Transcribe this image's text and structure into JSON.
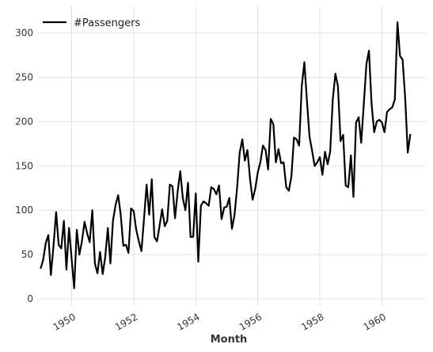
{
  "chart_data": {
    "type": "line",
    "title": "",
    "xlabel": "Month",
    "ylabel": "",
    "legend": {
      "position": "top-left",
      "entries": [
        "#Passengers"
      ]
    },
    "grid": true,
    "x_range": [
      "1948-12",
      "1961-06"
    ],
    "ylim": [
      -8,
      330
    ],
    "x_ticks": [
      "1950",
      "1952",
      "1954",
      "1956",
      "1958",
      "1960"
    ],
    "y_ticks": [
      0,
      50,
      100,
      150,
      200,
      250,
      300
    ],
    "series": [
      {
        "name": "#Passengers",
        "color": "#000000",
        "points": [
          [
            "1949-01",
            34
          ],
          [
            "1949-02",
            44
          ],
          [
            "1949-03",
            63
          ],
          [
            "1949-04",
            72
          ],
          [
            "1949-05",
            27
          ],
          [
            "1949-06",
            60
          ],
          [
            "1949-07",
            98
          ],
          [
            "1949-08",
            61
          ],
          [
            "1949-09",
            57
          ],
          [
            "1949-10",
            88
          ],
          [
            "1949-11",
            33
          ],
          [
            "1949-12",
            80
          ],
          [
            "1950-01",
            45
          ],
          [
            "1950-02",
            12
          ],
          [
            "1950-03",
            78
          ],
          [
            "1950-04",
            50
          ],
          [
            "1950-05",
            65
          ],
          [
            "1950-06",
            87
          ],
          [
            "1950-07",
            74
          ],
          [
            "1950-08",
            64
          ],
          [
            "1950-09",
            100
          ],
          [
            "1950-10",
            40
          ],
          [
            "1950-11",
            29
          ],
          [
            "1950-12",
            53
          ],
          [
            "1951-01",
            28
          ],
          [
            "1951-02",
            47
          ],
          [
            "1951-03",
            80
          ],
          [
            "1951-04",
            40
          ],
          [
            "1951-05",
            88
          ],
          [
            "1951-06",
            106
          ],
          [
            "1951-07",
            117
          ],
          [
            "1951-08",
            95
          ],
          [
            "1951-09",
            60
          ],
          [
            "1951-10",
            61
          ],
          [
            "1951-11",
            52
          ],
          [
            "1951-12",
            102
          ],
          [
            "1952-01",
            99
          ],
          [
            "1952-02",
            78
          ],
          [
            "1952-03",
            65
          ],
          [
            "1952-04",
            54
          ],
          [
            "1952-05",
            90
          ],
          [
            "1952-06",
            129
          ],
          [
            "1952-07",
            95
          ],
          [
            "1952-08",
            135
          ],
          [
            "1952-09",
            70
          ],
          [
            "1952-10",
            65
          ],
          [
            "1952-11",
            82
          ],
          [
            "1952-12",
            101
          ],
          [
            "1953-01",
            82
          ],
          [
            "1953-02",
            88
          ],
          [
            "1953-03",
            129
          ],
          [
            "1953-04",
            127
          ],
          [
            "1953-05",
            91
          ],
          [
            "1953-06",
            121
          ],
          [
            "1953-07",
            144
          ],
          [
            "1953-08",
            114
          ],
          [
            "1953-09",
            100
          ],
          [
            "1953-10",
            131
          ],
          [
            "1953-11",
            70
          ],
          [
            "1953-12",
            70
          ],
          [
            "1954-01",
            119
          ],
          [
            "1954-02",
            42
          ],
          [
            "1954-03",
            105
          ],
          [
            "1954-04",
            110
          ],
          [
            "1954-05",
            108
          ],
          [
            "1954-06",
            105
          ],
          [
            "1954-07",
            126
          ],
          [
            "1954-08",
            124
          ],
          [
            "1954-09",
            118
          ],
          [
            "1954-10",
            128
          ],
          [
            "1954-11",
            90
          ],
          [
            "1954-12",
            103
          ],
          [
            "1955-01",
            104
          ],
          [
            "1955-02",
            114
          ],
          [
            "1955-03",
            79
          ],
          [
            "1955-04",
            95
          ],
          [
            "1955-05",
            125
          ],
          [
            "1955-06",
            165
          ],
          [
            "1955-07",
            180
          ],
          [
            "1955-08",
            156
          ],
          [
            "1955-09",
            168
          ],
          [
            "1955-10",
            135
          ],
          [
            "1955-11",
            112
          ],
          [
            "1955-12",
            124
          ],
          [
            "1956-01",
            143
          ],
          [
            "1956-02",
            154
          ],
          [
            "1956-03",
            173
          ],
          [
            "1956-04",
            168
          ],
          [
            "1956-05",
            146
          ],
          [
            "1956-06",
            203
          ],
          [
            "1956-07",
            197
          ],
          [
            "1956-08",
            154
          ],
          [
            "1956-09",
            169
          ],
          [
            "1956-10",
            153
          ],
          [
            "1956-11",
            154
          ],
          [
            "1956-12",
            126
          ],
          [
            "1957-01",
            122
          ],
          [
            "1957-02",
            138
          ],
          [
            "1957-03",
            182
          ],
          [
            "1957-04",
            180
          ],
          [
            "1957-05",
            173
          ],
          [
            "1957-06",
            240
          ],
          [
            "1957-07",
            267
          ],
          [
            "1957-08",
            224
          ],
          [
            "1957-09",
            183
          ],
          [
            "1957-10",
            167
          ],
          [
            "1957-11",
            150
          ],
          [
            "1957-12",
            154
          ],
          [
            "1958-01",
            160
          ],
          [
            "1958-02",
            140
          ],
          [
            "1958-03",
            166
          ],
          [
            "1958-04",
            152
          ],
          [
            "1958-05",
            166
          ],
          [
            "1958-06",
            225
          ],
          [
            "1958-07",
            254
          ],
          [
            "1958-08",
            240
          ],
          [
            "1958-09",
            178
          ],
          [
            "1958-10",
            185
          ],
          [
            "1958-11",
            128
          ],
          [
            "1958-12",
            126
          ],
          [
            "1959-01",
            162
          ],
          [
            "1959-02",
            115
          ],
          [
            "1959-03",
            199
          ],
          [
            "1959-04",
            205
          ],
          [
            "1959-05",
            176
          ],
          [
            "1959-06",
            220
          ],
          [
            "1959-07",
            265
          ],
          [
            "1959-08",
            280
          ],
          [
            "1959-09",
            220
          ],
          [
            "1959-10",
            188
          ],
          [
            "1959-11",
            200
          ],
          [
            "1959-12",
            202
          ],
          [
            "1960-01",
            199
          ],
          [
            "1960-02",
            188
          ],
          [
            "1960-03",
            211
          ],
          [
            "1960-04",
            214
          ],
          [
            "1960-05",
            216
          ],
          [
            "1960-06",
            225
          ],
          [
            "1960-07",
            312
          ],
          [
            "1960-08",
            274
          ],
          [
            "1960-09",
            270
          ],
          [
            "1960-10",
            226
          ],
          [
            "1960-11",
            165
          ],
          [
            "1960-12",
            186
          ]
        ]
      }
    ]
  }
}
